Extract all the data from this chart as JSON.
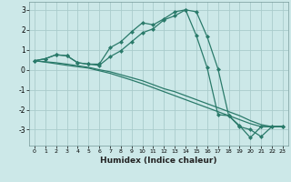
{
  "title": "",
  "xlabel": "Humidex (Indice chaleur)",
  "bg_color": "#cce8e8",
  "grid_color": "#aacccc",
  "line_color": "#2a7a6a",
  "xlim": [
    -0.5,
    23.5
  ],
  "ylim": [
    -3.8,
    3.4
  ],
  "xticks": [
    0,
    1,
    2,
    3,
    4,
    5,
    6,
    7,
    8,
    9,
    10,
    11,
    12,
    13,
    14,
    15,
    16,
    17,
    18,
    19,
    20,
    21,
    22,
    23
  ],
  "yticks": [
    -3,
    -2,
    -1,
    0,
    1,
    2,
    3
  ],
  "line1_x": [
    0,
    1,
    2,
    3,
    4,
    5,
    6,
    7,
    8,
    9,
    10,
    11,
    12,
    13,
    14,
    15,
    16,
    17,
    18,
    19,
    20,
    21,
    22,
    23
  ],
  "line1_y": [
    0.45,
    0.55,
    0.75,
    0.7,
    0.35,
    0.28,
    0.28,
    1.1,
    1.4,
    1.9,
    2.35,
    2.25,
    2.55,
    2.9,
    3.0,
    1.7,
    0.1,
    -2.25,
    -2.3,
    -2.8,
    -3.4,
    -2.85,
    -2.85,
    -2.85
  ],
  "line2_x": [
    0,
    1,
    2,
    3,
    4,
    5,
    6,
    7,
    8,
    9,
    10,
    11,
    12,
    13,
    14,
    15,
    16,
    17,
    18,
    19,
    20,
    21,
    22,
    23
  ],
  "line2_y": [
    0.45,
    0.55,
    0.75,
    0.7,
    0.35,
    0.28,
    0.22,
    0.65,
    0.95,
    1.4,
    1.85,
    2.05,
    2.5,
    2.7,
    3.0,
    2.9,
    1.65,
    0.05,
    -2.3,
    -2.85,
    -3.0,
    -3.35,
    -2.85,
    -2.85
  ],
  "line3_x": [
    0,
    1,
    2,
    3,
    4,
    5,
    6,
    7,
    8,
    9,
    10,
    11,
    12,
    13,
    14,
    15,
    16,
    17,
    18,
    19,
    20,
    21,
    22,
    23
  ],
  "line3_y": [
    0.45,
    0.4,
    0.35,
    0.28,
    0.2,
    0.12,
    0.0,
    -0.1,
    -0.25,
    -0.4,
    -0.55,
    -0.75,
    -0.95,
    -1.1,
    -1.3,
    -1.5,
    -1.7,
    -1.9,
    -2.1,
    -2.3,
    -2.55,
    -2.75,
    -2.85,
    -2.85
  ],
  "line4_x": [
    0,
    1,
    2,
    3,
    4,
    5,
    6,
    7,
    8,
    9,
    10,
    11,
    12,
    13,
    14,
    15,
    16,
    17,
    18,
    19,
    20,
    21,
    22,
    23
  ],
  "line4_y": [
    0.45,
    0.38,
    0.3,
    0.22,
    0.15,
    0.08,
    -0.05,
    -0.18,
    -0.35,
    -0.52,
    -0.7,
    -0.9,
    -1.1,
    -1.3,
    -1.5,
    -1.7,
    -1.9,
    -2.1,
    -2.3,
    -2.5,
    -2.7,
    -2.85,
    -2.85,
    -2.85
  ]
}
